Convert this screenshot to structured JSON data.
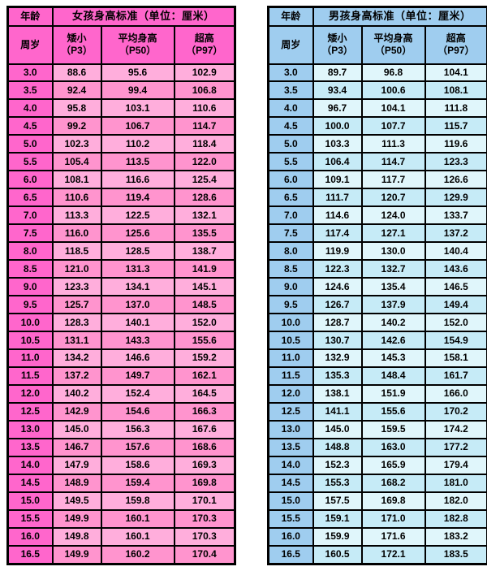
{
  "chart_data": [
    {
      "type": "table",
      "name": "girls-height-standards",
      "corner_label": "年龄",
      "age_unit_label": "周岁",
      "title": "女孩身高标准（单位：厘米）",
      "columns": [
        {
          "line1": "矮小",
          "line2": "（P3）"
        },
        {
          "line1": "平均身高",
          "line2": "（P50）"
        },
        {
          "line1": "超高",
          "line2": "（P97）"
        }
      ],
      "theme": {
        "header_bg": "#FF66CC",
        "age_bg": "#FF66CC",
        "row_light": "#FFAEDC",
        "row_dark": "#FF94CE",
        "border": "#000000",
        "text": "#000000"
      },
      "rows": [
        [
          "3.0",
          "88.6",
          "95.6",
          "102.9"
        ],
        [
          "3.5",
          "92.4",
          "99.4",
          "106.8"
        ],
        [
          "4.0",
          "95.8",
          "103.1",
          "110.6"
        ],
        [
          "4.5",
          "99.2",
          "106.7",
          "114.7"
        ],
        [
          "5.0",
          "102.3",
          "110.2",
          "118.4"
        ],
        [
          "5.5",
          "105.4",
          "113.5",
          "122.0"
        ],
        [
          "6.0",
          "108.1",
          "116.6",
          "125.4"
        ],
        [
          "6.5",
          "110.6",
          "119.4",
          "128.6"
        ],
        [
          "7.0",
          "113.3",
          "122.5",
          "132.1"
        ],
        [
          "7.5",
          "116.0",
          "125.6",
          "135.5"
        ],
        [
          "8.0",
          "118.5",
          "128.5",
          "138.7"
        ],
        [
          "8.5",
          "121.0",
          "131.3",
          "141.9"
        ],
        [
          "9.0",
          "123.3",
          "134.1",
          "145.1"
        ],
        [
          "9.5",
          "125.7",
          "137.0",
          "148.5"
        ],
        [
          "10.0",
          "128.3",
          "140.1",
          "152.0"
        ],
        [
          "10.5",
          "131.1",
          "143.3",
          "155.6"
        ],
        [
          "11.0",
          "134.2",
          "146.6",
          "159.2"
        ],
        [
          "11.5",
          "137.2",
          "149.7",
          "162.1"
        ],
        [
          "12.0",
          "140.2",
          "152.4",
          "164.5"
        ],
        [
          "12.5",
          "142.9",
          "154.6",
          "166.3"
        ],
        [
          "13.0",
          "145.0",
          "156.3",
          "167.6"
        ],
        [
          "13.5",
          "146.7",
          "157.6",
          "168.6"
        ],
        [
          "14.0",
          "147.9",
          "158.6",
          "169.3"
        ],
        [
          "14.5",
          "148.9",
          "159.4",
          "169.8"
        ],
        [
          "15.0",
          "149.5",
          "159.8",
          "170.1"
        ],
        [
          "15.5",
          "149.9",
          "160.1",
          "170.3"
        ],
        [
          "16.0",
          "149.8",
          "160.1",
          "170.3"
        ],
        [
          "16.5",
          "149.9",
          "160.2",
          "170.4"
        ]
      ]
    },
    {
      "type": "table",
      "name": "boys-height-standards",
      "corner_label": "年龄",
      "age_unit_label": "周岁",
      "title": "男孩身高标准（单位：厘米）",
      "columns": [
        {
          "line1": "矮小",
          "line2": "（P3）"
        },
        {
          "line1": "平均身高",
          "line2": "（P50）"
        },
        {
          "line1": "超高",
          "line2": "（P97）"
        }
      ],
      "theme": {
        "header_bg": "#9FCDEF",
        "age_bg": "#9FCDEF",
        "row_light": "#E0F6FB",
        "row_dark": "#C6EBF7",
        "border": "#000000",
        "text": "#000000"
      },
      "rows": [
        [
          "3.0",
          "89.7",
          "96.8",
          "104.1"
        ],
        [
          "3.5",
          "93.4",
          "100.6",
          "108.1"
        ],
        [
          "4.0",
          "96.7",
          "104.1",
          "111.8"
        ],
        [
          "4.5",
          "100.0",
          "107.7",
          "115.7"
        ],
        [
          "5.0",
          "103.3",
          "111.3",
          "119.6"
        ],
        [
          "5.5",
          "106.4",
          "114.7",
          "123.3"
        ],
        [
          "6.0",
          "109.1",
          "117.7",
          "126.6"
        ],
        [
          "6.5",
          "111.7",
          "120.7",
          "129.9"
        ],
        [
          "7.0",
          "114.6",
          "124.0",
          "133.7"
        ],
        [
          "7.5",
          "117.4",
          "127.1",
          "137.2"
        ],
        [
          "8.0",
          "119.9",
          "130.0",
          "140.4"
        ],
        [
          "8.5",
          "122.3",
          "132.7",
          "143.6"
        ],
        [
          "9.0",
          "124.6",
          "135.4",
          "146.5"
        ],
        [
          "9.5",
          "126.7",
          "137.9",
          "149.4"
        ],
        [
          "10.0",
          "128.7",
          "140.2",
          "152.0"
        ],
        [
          "10.5",
          "130.7",
          "142.6",
          "154.9"
        ],
        [
          "11.0",
          "132.9",
          "145.3",
          "158.1"
        ],
        [
          "11.5",
          "135.3",
          "148.4",
          "161.7"
        ],
        [
          "12.0",
          "138.1",
          "151.9",
          "166.0"
        ],
        [
          "12.5",
          "141.1",
          "155.6",
          "170.2"
        ],
        [
          "13.0",
          "145.0",
          "159.5",
          "174.2"
        ],
        [
          "13.5",
          "148.8",
          "163.0",
          "177.2"
        ],
        [
          "14.0",
          "152.3",
          "165.9",
          "179.4"
        ],
        [
          "14.5",
          "155.3",
          "168.2",
          "181.0"
        ],
        [
          "15.0",
          "157.5",
          "169.8",
          "182.0"
        ],
        [
          "15.5",
          "159.1",
          "171.0",
          "182.8"
        ],
        [
          "16.0",
          "159.9",
          "171.6",
          "183.2"
        ],
        [
          "16.5",
          "160.5",
          "172.1",
          "183.5"
        ]
      ]
    }
  ]
}
